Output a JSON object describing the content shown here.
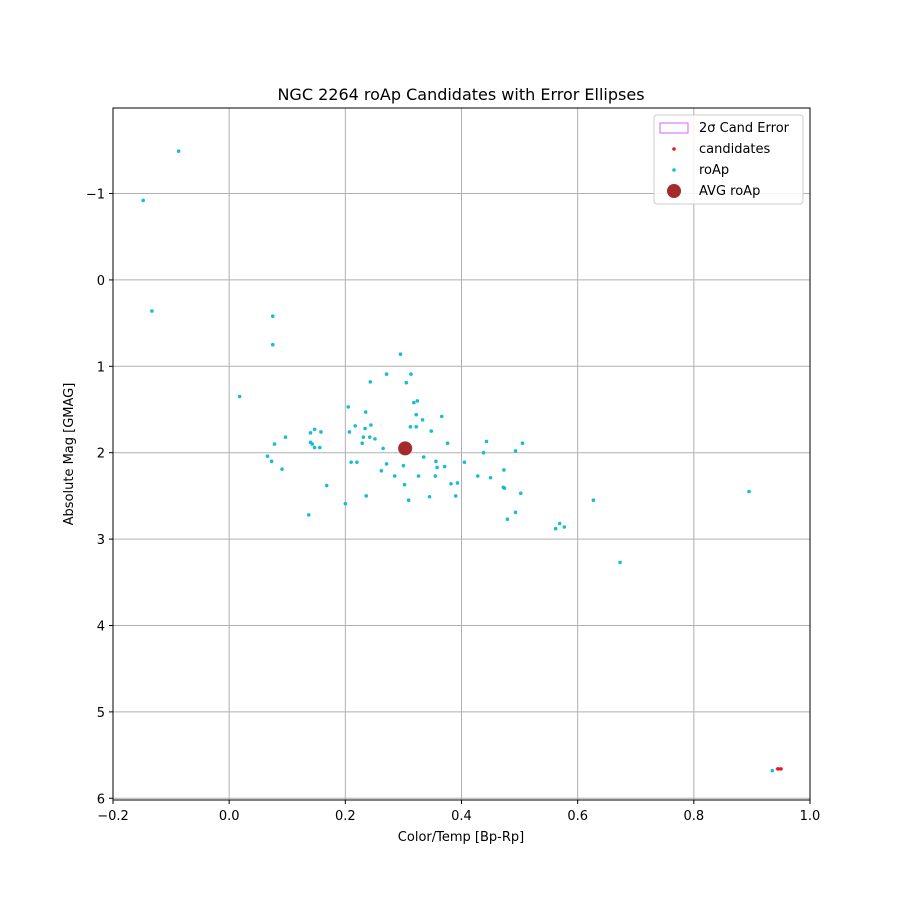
{
  "chart_data": {
    "type": "scatter",
    "title": "NGC 2264 roAp Candidates with Error Ellipses",
    "xlabel": "Color/Temp [Bp-Rp]",
    "ylabel": "Absolute Mag [GMAG]",
    "xlim": [
      -0.2,
      1.0
    ],
    "ylim": [
      6.02,
      -1.99
    ],
    "y_inverted": true,
    "grid": true,
    "legend_placement": "top-right",
    "x_ticks": [
      -0.2,
      0.0,
      0.2,
      0.4,
      0.6,
      0.8,
      1.0
    ],
    "x_tick_labels": [
      "−0.2",
      "0.0",
      "0.2",
      "0.4",
      "0.6",
      "0.8",
      "1.0"
    ],
    "y_ticks": [
      -1,
      0,
      1,
      2,
      3,
      4,
      5,
      6
    ],
    "y_tick_labels": [
      "−1",
      "0",
      "1",
      "2",
      "3",
      "4",
      "5",
      "6"
    ],
    "colors": {
      "roAp": "#17becf",
      "candidates": "#e41a1c",
      "avg": "#a52a2a",
      "error": "#cc66ff"
    },
    "series": [
      {
        "name": "2σ Cand Error",
        "kind": "ellipse",
        "points": [
          {
            "x": 0.945,
            "y": 5.66
          }
        ]
      },
      {
        "name": "candidates",
        "kind": "point",
        "points": [
          {
            "x": 0.945,
            "y": 5.66
          },
          {
            "x": 0.95,
            "y": 5.66
          }
        ]
      },
      {
        "name": "roAp",
        "kind": "point",
        "points": [
          {
            "x": -0.087,
            "y": -1.49
          },
          {
            "x": -0.148,
            "y": -0.92
          },
          {
            "x": -0.133,
            "y": 0.36
          },
          {
            "x": 0.075,
            "y": 0.42
          },
          {
            "x": 0.075,
            "y": 0.75
          },
          {
            "x": 0.018,
            "y": 1.35
          },
          {
            "x": 0.078,
            "y": 1.9
          },
          {
            "x": 0.097,
            "y": 1.82
          },
          {
            "x": 0.066,
            "y": 2.04
          },
          {
            "x": 0.073,
            "y": 2.1
          },
          {
            "x": 0.091,
            "y": 2.19
          },
          {
            "x": 0.137,
            "y": 2.72
          },
          {
            "x": 0.14,
            "y": 1.77
          },
          {
            "x": 0.147,
            "y": 1.73
          },
          {
            "x": 0.158,
            "y": 1.76
          },
          {
            "x": 0.14,
            "y": 1.88
          },
          {
            "x": 0.143,
            "y": 1.9
          },
          {
            "x": 0.147,
            "y": 1.94
          },
          {
            "x": 0.156,
            "y": 1.94
          },
          {
            "x": 0.168,
            "y": 2.38
          },
          {
            "x": 0.205,
            "y": 1.47
          },
          {
            "x": 0.207,
            "y": 1.76
          },
          {
            "x": 0.217,
            "y": 1.69
          },
          {
            "x": 0.21,
            "y": 2.11
          },
          {
            "x": 0.22,
            "y": 2.11
          },
          {
            "x": 0.2,
            "y": 2.59
          },
          {
            "x": 0.235,
            "y": 1.53
          },
          {
            "x": 0.234,
            "y": 1.72
          },
          {
            "x": 0.244,
            "y": 1.68
          },
          {
            "x": 0.231,
            "y": 1.82
          },
          {
            "x": 0.242,
            "y": 1.82
          },
          {
            "x": 0.251,
            "y": 1.84
          },
          {
            "x": 0.229,
            "y": 1.89
          },
          {
            "x": 0.265,
            "y": 1.95
          },
          {
            "x": 0.243,
            "y": 1.18
          },
          {
            "x": 0.271,
            "y": 1.09
          },
          {
            "x": 0.295,
            "y": 0.86
          },
          {
            "x": 0.313,
            "y": 1.09
          },
          {
            "x": 0.305,
            "y": 1.19
          },
          {
            "x": 0.318,
            "y": 1.42
          },
          {
            "x": 0.324,
            "y": 1.4
          },
          {
            "x": 0.322,
            "y": 1.56
          },
          {
            "x": 0.333,
            "y": 1.62
          },
          {
            "x": 0.312,
            "y": 1.7
          },
          {
            "x": 0.322,
            "y": 1.7
          },
          {
            "x": 0.348,
            "y": 1.75
          },
          {
            "x": 0.366,
            "y": 1.58
          },
          {
            "x": 0.376,
            "y": 1.89
          },
          {
            "x": 0.298,
            "y": 1.98
          },
          {
            "x": 0.271,
            "y": 2.13
          },
          {
            "x": 0.262,
            "y": 2.21
          },
          {
            "x": 0.285,
            "y": 2.27
          },
          {
            "x": 0.3,
            "y": 2.15
          },
          {
            "x": 0.302,
            "y": 2.37
          },
          {
            "x": 0.309,
            "y": 2.55
          },
          {
            "x": 0.236,
            "y": 2.5
          },
          {
            "x": 0.326,
            "y": 2.27
          },
          {
            "x": 0.335,
            "y": 2.05
          },
          {
            "x": 0.356,
            "y": 2.1
          },
          {
            "x": 0.358,
            "y": 2.17
          },
          {
            "x": 0.371,
            "y": 2.16
          },
          {
            "x": 0.355,
            "y": 2.27
          },
          {
            "x": 0.345,
            "y": 2.51
          },
          {
            "x": 0.382,
            "y": 2.36
          },
          {
            "x": 0.393,
            "y": 2.35
          },
          {
            "x": 0.39,
            "y": 2.5
          },
          {
            "x": 0.405,
            "y": 2.11
          },
          {
            "x": 0.443,
            "y": 1.87
          },
          {
            "x": 0.438,
            "y": 2.0
          },
          {
            "x": 0.428,
            "y": 2.27
          },
          {
            "x": 0.45,
            "y": 2.29
          },
          {
            "x": 0.473,
            "y": 2.2
          },
          {
            "x": 0.472,
            "y": 2.4
          },
          {
            "x": 0.474,
            "y": 2.41
          },
          {
            "x": 0.479,
            "y": 2.77
          },
          {
            "x": 0.493,
            "y": 1.98
          },
          {
            "x": 0.505,
            "y": 1.89
          },
          {
            "x": 0.502,
            "y": 2.47
          },
          {
            "x": 0.493,
            "y": 2.69
          },
          {
            "x": 0.562,
            "y": 2.88
          },
          {
            "x": 0.569,
            "y": 2.82
          },
          {
            "x": 0.577,
            "y": 2.86
          },
          {
            "x": 0.627,
            "y": 2.55
          },
          {
            "x": 0.673,
            "y": 3.27
          },
          {
            "x": 0.895,
            "y": 2.45
          },
          {
            "x": 0.935,
            "y": 5.68
          }
        ]
      },
      {
        "name": "AVG roAp",
        "kind": "large-point",
        "points": [
          {
            "x": 0.303,
            "y": 1.95
          }
        ]
      }
    ]
  }
}
